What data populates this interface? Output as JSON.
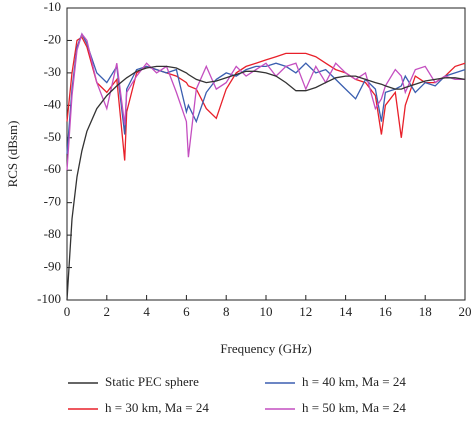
{
  "chart_data": {
    "type": "line",
    "xlabel": "Frequency (GHz)",
    "ylabel": "RCS (dBsm)",
    "x": [
      0,
      0.25,
      0.5,
      0.75,
      1,
      1.5,
      2,
      2.5,
      2.9,
      3,
      3.5,
      4,
      4.5,
      5,
      5.5,
      6,
      6.1,
      6.5,
      7,
      7.5,
      8,
      8.5,
      9,
      9.5,
      10,
      10.5,
      11,
      11.5,
      12,
      12.5,
      13,
      13.5,
      14,
      14.5,
      15,
      15.5,
      15.8,
      16,
      16.5,
      16.8,
      17,
      17.5,
      18,
      18.5,
      19,
      19.5,
      20
    ],
    "series": [
      {
        "name": "Static PEC sphere",
        "color": "#333333",
        "values": [
          -100,
          -75,
          -62,
          -54,
          -48,
          -41,
          -37,
          -34,
          -32,
          -31.5,
          -29.5,
          -28.5,
          -28,
          -28,
          -28.5,
          -30,
          -30.5,
          -32,
          -33,
          -32.5,
          -31.5,
          -30.5,
          -29.5,
          -29.5,
          -30,
          -31,
          -33,
          -35.5,
          -35.5,
          -34.5,
          -33,
          -31.5,
          -31,
          -31,
          -32,
          -33,
          -33.5,
          -34,
          -35,
          -35,
          -34.5,
          -33.5,
          -32.5,
          -32,
          -31.5,
          -31.5,
          -32
        ]
      },
      {
        "name": "h = 30 km, Ma = 24",
        "color": "#e8202a",
        "values": [
          -45,
          -30,
          -20,
          -19,
          -22,
          -33,
          -36,
          -32,
          -57,
          -42,
          -30,
          -28,
          -29,
          -30,
          -31,
          -33,
          -34,
          -35,
          -41,
          -44,
          -35,
          -30,
          -28,
          -27,
          -26,
          -25,
          -24,
          -24,
          -24,
          -25,
          -27,
          -29,
          -30,
          -32,
          -33,
          -37,
          -49,
          -40,
          -36,
          -50,
          -40,
          -31,
          -33,
          -33,
          -31,
          -28,
          -27
        ]
      },
      {
        "name": "h = 40 km, Ma = 24",
        "color": "#3b5fb0",
        "values": [
          -55,
          -35,
          -22,
          -18,
          -21,
          -30,
          -33,
          -28,
          -49,
          -35,
          -29,
          -28,
          -29,
          -30,
          -29,
          -42,
          -40,
          -45,
          -36,
          -32,
          -30,
          -31,
          -29,
          -28,
          -28,
          -27,
          -28,
          -30,
          -27,
          -30,
          -29,
          -32,
          -35,
          -38,
          -32,
          -35,
          -45,
          -36,
          -35,
          -34,
          -31,
          -36,
          -33,
          -34,
          -31,
          -30,
          -29
        ]
      },
      {
        "name": "h = 50 km, Ma = 24",
        "color": "#c44fc0",
        "values": [
          -60,
          -37,
          -23,
          -18,
          -20,
          -33,
          -41,
          -27,
          -46,
          -36,
          -31,
          -27,
          -30,
          -28,
          -36,
          -45,
          -56,
          -35,
          -28,
          -35,
          -33,
          -28,
          -31,
          -29,
          -27,
          -31,
          -28,
          -27,
          -35,
          -28,
          -33,
          -27,
          -30,
          -32,
          -30,
          -41,
          -38,
          -34,
          -29,
          -31,
          -36,
          -29,
          -28,
          -33,
          -31,
          -32,
          -32
        ]
      }
    ],
    "xlim": [
      0,
      20
    ],
    "xticks": [
      0,
      2,
      4,
      6,
      8,
      10,
      12,
      14,
      16,
      18,
      20
    ],
    "ylim": [
      -100,
      -10
    ],
    "yticks": [
      -10,
      -20,
      -30,
      -40,
      -50,
      -60,
      -70,
      -80,
      -90,
      -100
    ]
  }
}
